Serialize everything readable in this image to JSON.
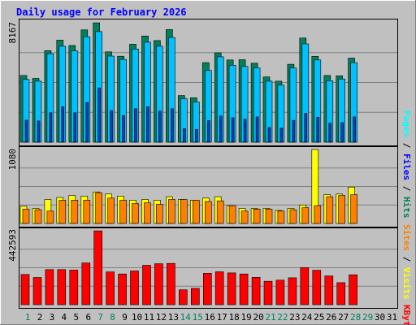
{
  "title": "Daily usage for February 2026",
  "colors": {
    "background": "#c0c0c0",
    "plot_bg": "#c0c0c0",
    "title": "#0000ff",
    "hits": "#00805c",
    "files": "#00c0ff",
    "pages": "#00ffff",
    "visits": "#ffff00",
    "sites": "#ff8000",
    "kbytes": "#ff0000",
    "weekend_label": "#00805c",
    "weekday_label": "#000000"
  },
  "chart_data": [
    {
      "type": "bar",
      "panel": "hits-files-pages",
      "ymax_label": "8167",
      "ymax": 8167,
      "axis_labels": [
        "Pages",
        "Files",
        "Hits"
      ],
      "categories": [
        "1",
        "2",
        "3",
        "4",
        "5",
        "6",
        "7",
        "8",
        "9",
        "10",
        "11",
        "12",
        "13",
        "14",
        "15",
        "16",
        "17",
        "18",
        "19",
        "20",
        "21",
        "22",
        "23",
        "24",
        "25",
        "26",
        "27",
        "28",
        "29",
        "30",
        "31"
      ],
      "series": [
        {
          "name": "Hits",
          "values": [
            4560,
            4360,
            6260,
            6980,
            6610,
            7680,
            8160,
            6180,
            5880,
            6700,
            7260,
            6950,
            7700,
            3190,
            3040,
            5440,
            6110,
            5620,
            5640,
            5400,
            4460,
            4170,
            5330,
            7120,
            5870,
            4560,
            4540,
            5750,
            0,
            0,
            0
          ]
        },
        {
          "name": "Files",
          "values": [
            4290,
            4170,
            6050,
            6560,
            6240,
            7210,
            7560,
            5890,
            5660,
            6370,
            6840,
            6560,
            7160,
            2970,
            2750,
            4910,
            5840,
            5260,
            5180,
            5070,
            4170,
            3900,
            5070,
            6720,
            5620,
            4200,
            4320,
            5440,
            0,
            0,
            0
          ]
        },
        {
          "name": "Pages",
          "values": [
            1500,
            1450,
            2010,
            2430,
            2010,
            2710,
            3710,
            2160,
            1820,
            2290,
            2430,
            2130,
            2290,
            920,
            870,
            1480,
            1790,
            1670,
            1570,
            1730,
            1010,
            980,
            1490,
            1970,
            1700,
            1300,
            1340,
            1730,
            0,
            0,
            0
          ]
        }
      ]
    },
    {
      "type": "bar",
      "panel": "visits-sites",
      "ymax_label": "1080",
      "ymax": 1080,
      "axis_labels": [
        "Sites",
        "Visits"
      ],
      "categories": [
        "1",
        "2",
        "3",
        "4",
        "5",
        "6",
        "7",
        "8",
        "9",
        "10",
        "11",
        "12",
        "13",
        "14",
        "15",
        "16",
        "17",
        "18",
        "19",
        "20",
        "21",
        "22",
        "23",
        "24",
        "25",
        "26",
        "27",
        "28",
        "29",
        "30",
        "31"
      ],
      "series": [
        {
          "name": "Visits",
          "values": [
            250,
            220,
            350,
            380,
            410,
            400,
            460,
            430,
            400,
            340,
            350,
            340,
            390,
            350,
            340,
            370,
            390,
            260,
            220,
            220,
            220,
            190,
            220,
            270,
            1080,
            420,
            430,
            530,
            0,
            0,
            0
          ]
        },
        {
          "name": "Sites",
          "values": [
            210,
            200,
            180,
            340,
            340,
            340,
            450,
            370,
            340,
            290,
            300,
            280,
            350,
            350,
            340,
            320,
            330,
            260,
            180,
            210,
            210,
            180,
            200,
            230,
            260,
            390,
            410,
            420,
            0,
            0,
            0
          ]
        }
      ]
    },
    {
      "type": "bar",
      "panel": "kbytes",
      "ymax_label": "442593",
      "ymax": 442593,
      "axis_labels": [
        "KBytes"
      ],
      "categories": [
        "1",
        "2",
        "3",
        "4",
        "5",
        "6",
        "7",
        "8",
        "9",
        "10",
        "11",
        "12",
        "13",
        "14",
        "15",
        "16",
        "17",
        "18",
        "19",
        "20",
        "21",
        "22",
        "23",
        "24",
        "25",
        "26",
        "27",
        "28",
        "29",
        "30",
        "31"
      ],
      "series": [
        {
          "name": "KBytes",
          "values": [
            181000,
            163000,
            210000,
            210000,
            207000,
            250000,
            442000,
            196000,
            184000,
            202000,
            236000,
            245000,
            247000,
            89000,
            98000,
            188000,
            197000,
            190000,
            184000,
            164000,
            140000,
            147000,
            161000,
            222000,
            206000,
            172000,
            132000,
            179000,
            0,
            0,
            0
          ]
        }
      ]
    }
  ],
  "weekend_days": [
    1,
    7,
    8,
    14,
    15,
    21,
    22,
    28,
    29
  ]
}
